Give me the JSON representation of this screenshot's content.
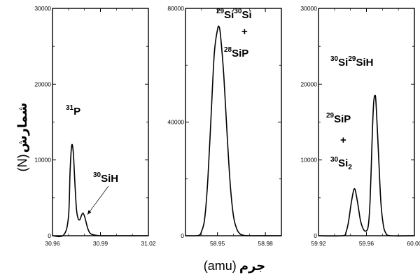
{
  "figure": {
    "ylabel": {
      "arabic": "شمارش",
      "unit": "(N)"
    },
    "xlabel": {
      "arabic": "جرم",
      "unit": "(amu)"
    }
  },
  "chart_data": [
    {
      "type": "line",
      "xlim": [
        30.96,
        31.02
      ],
      "ylim": [
        0,
        30000
      ],
      "xticks": [
        "30.96",
        "30.99",
        "31.02"
      ],
      "yticks": [
        "0",
        "10000",
        "20000",
        "30000"
      ],
      "x": [
        30.96,
        30.967,
        30.97,
        30.971,
        30.972,
        30.973,
        30.974,
        30.975,
        30.976,
        30.977,
        30.978,
        30.979,
        30.98,
        30.981,
        30.982,
        30.983,
        30.984,
        30.986,
        30.99,
        31.0,
        31.02
      ],
      "series": [
        {
          "values": [
            0,
            100,
            2500,
            8500,
            11900,
            11000,
            7000,
            3500,
            2300,
            2100,
            2600,
            3000,
            2600,
            1800,
            1000,
            500,
            250,
            100,
            0,
            0,
            0
          ]
        }
      ],
      "annotations": [
        {
          "text": "P",
          "isotope": "31"
        },
        {
          "text": "SiH",
          "isotope": "30",
          "arrow_to": {
            "x": 30.981,
            "y": 2700
          }
        }
      ]
    },
    {
      "type": "line",
      "xlim": [
        58.93,
        58.99
      ],
      "ylim": [
        0,
        80000
      ],
      "xticks": [
        "58.95",
        "58.98"
      ],
      "yticks": [
        "0",
        "40000",
        "80000"
      ],
      "x": [
        58.93,
        58.938,
        58.94,
        58.942,
        58.944,
        58.946,
        58.948,
        58.95,
        58.951,
        58.952,
        58.954,
        58.956,
        58.958,
        58.96,
        58.962,
        58.964,
        58.966,
        58.97,
        58.99
      ],
      "series": [
        {
          "values": [
            0,
            100,
            1500,
            6000,
            20000,
            42000,
            64000,
            72500,
            73500,
            70000,
            56000,
            36000,
            18000,
            7000,
            2500,
            700,
            200,
            0,
            0
          ]
        }
      ],
      "annotations": [
        {
          "parts": [
            {
              "isotope": "29",
              "text": "Si"
            },
            {
              "isotope": "30",
              "text": "Si"
            }
          ]
        },
        {
          "text": "+"
        },
        {
          "text": "SiP",
          "isotope": "28"
        }
      ]
    },
    {
      "type": "line",
      "xlim": [
        59.92,
        60.0
      ],
      "ylim": [
        0,
        30000
      ],
      "xticks": [
        "59.92",
        "59.96",
        "60.00"
      ],
      "yticks": [
        "0",
        "10000",
        "20000",
        "30000"
      ],
      "x": [
        59.92,
        59.94,
        59.943,
        59.945,
        59.947,
        59.949,
        59.95,
        59.951,
        59.953,
        59.955,
        59.957,
        59.959,
        59.961,
        59.962,
        59.963,
        59.964,
        59.965,
        59.966,
        59.967,
        59.968,
        59.97,
        59.972,
        59.974,
        59.976,
        59.98,
        60.0
      ],
      "series": [
        {
          "values": [
            0,
            0,
            500,
            1800,
            4000,
            5800,
            6200,
            5800,
            4000,
            2000,
            1000,
            600,
            900,
            2000,
            4500,
            9000,
            14000,
            17500,
            18500,
            17500,
            11000,
            4500,
            1500,
            400,
            0,
            0
          ]
        }
      ],
      "annotations": [
        {
          "parts": [
            {
              "isotope": "30",
              "text": "Si"
            },
            {
              "isotope": "29",
              "text": "SiH"
            }
          ]
        },
        {
          "text": "SiP",
          "isotope": "29"
        },
        {
          "text": "+"
        },
        {
          "text": "Si",
          "isotope": "30",
          "subscript": "2"
        }
      ]
    }
  ]
}
